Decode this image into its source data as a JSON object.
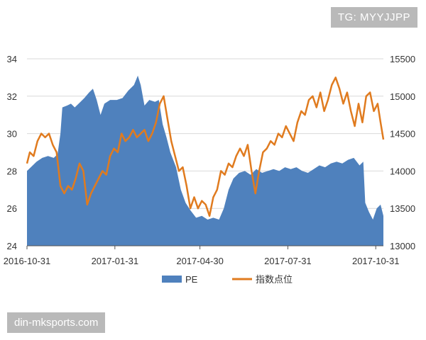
{
  "watermarks": {
    "top_right": "TG: MYYJJPP",
    "bottom_left": "din-mksports.com"
  },
  "chart_data": {
    "type": "area+line",
    "title": "",
    "xlabel": "",
    "ylabel": "",
    "grid": true,
    "legend_position": "bottom",
    "x_ticks": [
      "2016-10-31",
      "2017-01-31",
      "2017-04-30",
      "2017-07-31",
      "2017-10-31"
    ],
    "x_range": [
      "2016-10-31",
      "2017-11-08"
    ],
    "y_left": {
      "range": [
        24,
        34
      ],
      "ticks": [
        "24",
        "26",
        "28",
        "30",
        "32",
        "34"
      ]
    },
    "y_right": {
      "range": [
        13000,
        15500
      ],
      "ticks": [
        "13000",
        "13500",
        "14000",
        "14500",
        "15000",
        "15500"
      ]
    },
    "series": [
      {
        "name": "PE",
        "kind": "area",
        "axis": "left",
        "color": "#4f81bd",
        "points": [
          [
            "2016-10-31",
            28.0
          ],
          [
            "2016-11-04",
            28.2
          ],
          [
            "2016-11-10",
            28.5
          ],
          [
            "2016-11-16",
            28.7
          ],
          [
            "2016-11-22",
            28.8
          ],
          [
            "2016-11-28",
            28.7
          ],
          [
            "2016-12-02",
            28.9
          ],
          [
            "2016-12-05",
            30.0
          ],
          [
            "2016-12-07",
            31.4
          ],
          [
            "2016-12-12",
            31.5
          ],
          [
            "2016-12-16",
            31.6
          ],
          [
            "2016-12-20",
            31.4
          ],
          [
            "2016-12-26",
            31.7
          ],
          [
            "2016-12-30",
            31.9
          ],
          [
            "2017-01-04",
            32.2
          ],
          [
            "2017-01-08",
            32.4
          ],
          [
            "2017-01-12",
            31.8
          ],
          [
            "2017-01-16",
            31.0
          ],
          [
            "2017-01-20",
            31.6
          ],
          [
            "2017-01-26",
            31.8
          ],
          [
            "2017-02-02",
            31.8
          ],
          [
            "2017-02-08",
            31.9
          ],
          [
            "2017-02-14",
            32.3
          ],
          [
            "2017-02-20",
            32.6
          ],
          [
            "2017-02-24",
            33.1
          ],
          [
            "2017-02-27",
            32.6
          ],
          [
            "2017-03-03",
            31.5
          ],
          [
            "2017-03-08",
            31.8
          ],
          [
            "2017-03-14",
            31.7
          ],
          [
            "2017-03-18",
            31.8
          ],
          [
            "2017-03-22",
            30.5
          ],
          [
            "2017-03-26",
            29.8
          ],
          [
            "2017-03-30",
            29.0
          ],
          [
            "2017-04-05",
            28.2
          ],
          [
            "2017-04-10",
            27.0
          ],
          [
            "2017-04-15",
            26.3
          ],
          [
            "2017-04-20",
            25.9
          ],
          [
            "2017-04-26",
            25.5
          ],
          [
            "2017-05-02",
            25.6
          ],
          [
            "2017-05-08",
            25.4
          ],
          [
            "2017-05-14",
            25.5
          ],
          [
            "2017-05-20",
            25.4
          ],
          [
            "2017-05-25",
            26.0
          ],
          [
            "2017-05-30",
            27.0
          ],
          [
            "2017-06-04",
            27.6
          ],
          [
            "2017-06-10",
            27.9
          ],
          [
            "2017-06-16",
            28.0
          ],
          [
            "2017-06-22",
            27.8
          ],
          [
            "2017-06-28",
            28.1
          ],
          [
            "2017-07-04",
            27.9
          ],
          [
            "2017-07-10",
            28.0
          ],
          [
            "2017-07-16",
            28.1
          ],
          [
            "2017-07-22",
            28.0
          ],
          [
            "2017-07-28",
            28.2
          ],
          [
            "2017-08-03",
            28.1
          ],
          [
            "2017-08-09",
            28.2
          ],
          [
            "2017-08-15",
            28.0
          ],
          [
            "2017-08-21",
            27.9
          ],
          [
            "2017-08-27",
            28.1
          ],
          [
            "2017-09-02",
            28.3
          ],
          [
            "2017-09-08",
            28.2
          ],
          [
            "2017-09-14",
            28.4
          ],
          [
            "2017-09-20",
            28.5
          ],
          [
            "2017-09-26",
            28.4
          ],
          [
            "2017-10-02",
            28.6
          ],
          [
            "2017-10-08",
            28.7
          ],
          [
            "2017-10-14",
            28.3
          ],
          [
            "2017-10-18",
            28.5
          ],
          [
            "2017-10-20",
            26.3
          ],
          [
            "2017-10-24",
            25.8
          ],
          [
            "2017-10-28",
            25.4
          ],
          [
            "2017-11-01",
            26.0
          ],
          [
            "2017-11-05",
            26.2
          ],
          [
            "2017-11-08",
            25.6
          ]
        ]
      },
      {
        "name": "指数点位",
        "kind": "line",
        "axis": "right",
        "color": "#e07b1f",
        "points": [
          [
            "2016-10-31",
            14100
          ],
          [
            "2016-11-03",
            14250
          ],
          [
            "2016-11-07",
            14200
          ],
          [
            "2016-11-11",
            14400
          ],
          [
            "2016-11-15",
            14500
          ],
          [
            "2016-11-19",
            14450
          ],
          [
            "2016-11-23",
            14500
          ],
          [
            "2016-11-27",
            14350
          ],
          [
            "2016-12-01",
            14250
          ],
          [
            "2016-12-05",
            13800
          ],
          [
            "2016-12-09",
            13700
          ],
          [
            "2016-12-13",
            13800
          ],
          [
            "2016-12-17",
            13750
          ],
          [
            "2016-12-21",
            13900
          ],
          [
            "2016-12-25",
            14100
          ],
          [
            "2016-12-29",
            14000
          ],
          [
            "2017-01-02",
            13550
          ],
          [
            "2017-01-06",
            13700
          ],
          [
            "2017-01-10",
            13800
          ],
          [
            "2017-01-14",
            13900
          ],
          [
            "2017-01-18",
            14000
          ],
          [
            "2017-01-22",
            13950
          ],
          [
            "2017-01-26",
            14200
          ],
          [
            "2017-01-30",
            14300
          ],
          [
            "2017-02-03",
            14250
          ],
          [
            "2017-02-07",
            14500
          ],
          [
            "2017-02-11",
            14400
          ],
          [
            "2017-02-15",
            14450
          ],
          [
            "2017-02-19",
            14550
          ],
          [
            "2017-02-23",
            14450
          ],
          [
            "2017-02-27",
            14500
          ],
          [
            "2017-03-03",
            14550
          ],
          [
            "2017-03-07",
            14400
          ],
          [
            "2017-03-11",
            14500
          ],
          [
            "2017-03-15",
            14650
          ],
          [
            "2017-03-19",
            14900
          ],
          [
            "2017-03-23",
            15000
          ],
          [
            "2017-03-27",
            14700
          ],
          [
            "2017-03-31",
            14400
          ],
          [
            "2017-04-04",
            14200
          ],
          [
            "2017-04-08",
            14000
          ],
          [
            "2017-04-12",
            14050
          ],
          [
            "2017-04-16",
            13800
          ],
          [
            "2017-04-20",
            13500
          ],
          [
            "2017-04-24",
            13650
          ],
          [
            "2017-04-28",
            13500
          ],
          [
            "2017-05-02",
            13600
          ],
          [
            "2017-05-06",
            13550
          ],
          [
            "2017-05-10",
            13400
          ],
          [
            "2017-05-14",
            13650
          ],
          [
            "2017-05-18",
            13750
          ],
          [
            "2017-05-22",
            14000
          ],
          [
            "2017-05-26",
            13950
          ],
          [
            "2017-05-30",
            14100
          ],
          [
            "2017-06-03",
            14050
          ],
          [
            "2017-06-07",
            14200
          ],
          [
            "2017-06-11",
            14300
          ],
          [
            "2017-06-15",
            14200
          ],
          [
            "2017-06-19",
            14350
          ],
          [
            "2017-06-23",
            14000
          ],
          [
            "2017-06-27",
            13700
          ],
          [
            "2017-07-01",
            14000
          ],
          [
            "2017-07-05",
            14250
          ],
          [
            "2017-07-09",
            14300
          ],
          [
            "2017-07-13",
            14400
          ],
          [
            "2017-07-17",
            14350
          ],
          [
            "2017-07-21",
            14500
          ],
          [
            "2017-07-25",
            14450
          ],
          [
            "2017-07-29",
            14600
          ],
          [
            "2017-08-02",
            14500
          ],
          [
            "2017-08-06",
            14400
          ],
          [
            "2017-08-10",
            14650
          ],
          [
            "2017-08-14",
            14800
          ],
          [
            "2017-08-18",
            14750
          ],
          [
            "2017-08-22",
            14950
          ],
          [
            "2017-08-26",
            15000
          ],
          [
            "2017-08-30",
            14850
          ],
          [
            "2017-09-03",
            15050
          ],
          [
            "2017-09-07",
            14800
          ],
          [
            "2017-09-11",
            14950
          ],
          [
            "2017-09-15",
            15150
          ],
          [
            "2017-09-19",
            15250
          ],
          [
            "2017-09-23",
            15100
          ],
          [
            "2017-09-27",
            14900
          ],
          [
            "2017-10-01",
            15050
          ],
          [
            "2017-10-05",
            14800
          ],
          [
            "2017-10-09",
            14600
          ],
          [
            "2017-10-13",
            14900
          ],
          [
            "2017-10-17",
            14650
          ],
          [
            "2017-10-21",
            15000
          ],
          [
            "2017-10-25",
            15050
          ],
          [
            "2017-10-29",
            14800
          ],
          [
            "2017-11-02",
            14900
          ],
          [
            "2017-11-05",
            14650
          ],
          [
            "2017-11-08",
            14420
          ]
        ]
      }
    ]
  }
}
